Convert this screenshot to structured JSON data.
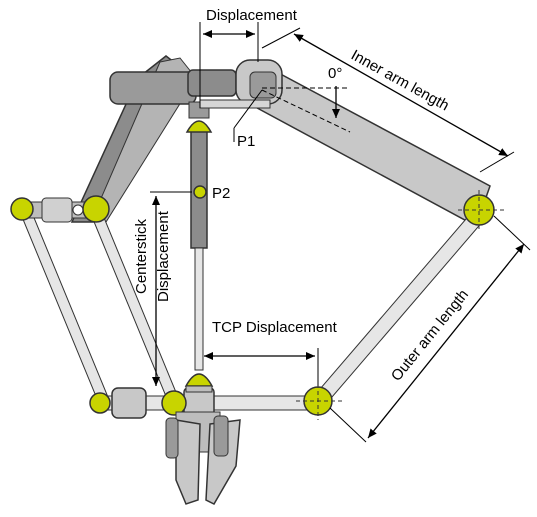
{
  "labels": {
    "displacement": "Displacement",
    "inner_arm_length": "Inner arm length",
    "outer_arm_length": "Outer arm length",
    "angle": "0°",
    "p1": "P1",
    "p2": "P2",
    "centerstick_line1": "Centerstick",
    "centerstick_line2": "Displacement",
    "tcp_displacement": "TCP Displacement"
  },
  "colors": {
    "arm_fill": "#c8c8c8",
    "arm_dark": "#8c8c8c",
    "outline": "#333333",
    "joint_yellow": "#c8d400",
    "rod_fill": "#e6e6e6",
    "pin_fill": "#ffffff"
  }
}
